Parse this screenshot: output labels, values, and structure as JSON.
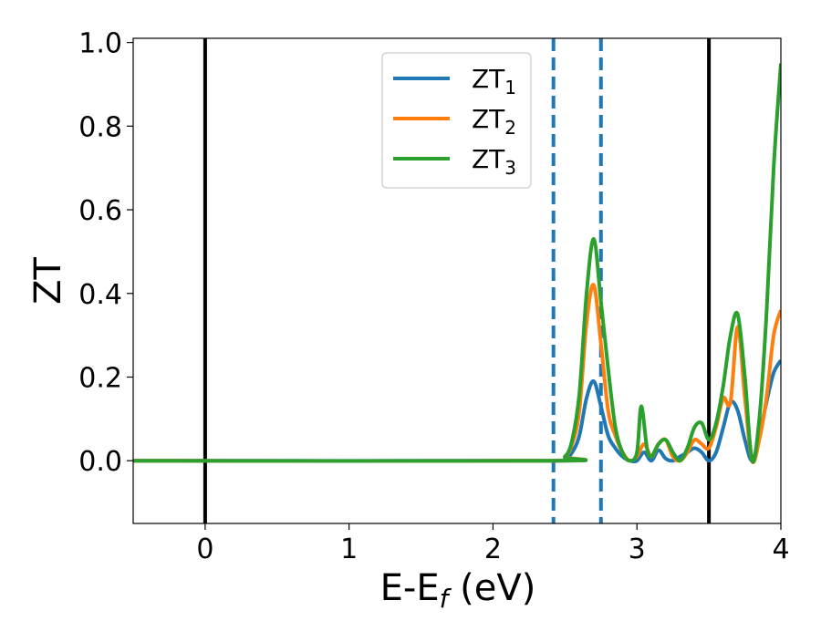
{
  "chart_data": {
    "type": "line",
    "xlabel": "E-E",
    "xlabel_sub": "f",
    "xlabel_unit": " (eV)",
    "ylabel": "ZT",
    "xlim": [
      -0.5,
      4.0
    ],
    "ylim": [
      -0.15,
      1.01
    ],
    "xticks": [
      0,
      1,
      2,
      3,
      4
    ],
    "yticks": [
      0.0,
      0.2,
      0.4,
      0.6,
      0.8,
      1.0
    ],
    "xtick_labels": [
      "0",
      "1",
      "2",
      "3",
      "4"
    ],
    "ytick_labels": [
      "0.0",
      "0.2",
      "0.4",
      "0.6",
      "0.8",
      "1.0"
    ],
    "grid": false,
    "legend_position": "upper-center",
    "vlines": [
      {
        "x": 0.0,
        "style": "solid",
        "color": "#000000"
      },
      {
        "x": 2.42,
        "style": "dashed",
        "color": "#1f77b4"
      },
      {
        "x": 2.75,
        "style": "dashed",
        "color": "#1f77b4"
      },
      {
        "x": 3.5,
        "style": "solid",
        "color": "#000000"
      }
    ],
    "series": [
      {
        "name": "ZT",
        "sub": "1",
        "color": "#1f77b4",
        "x": [
          -0.5,
          2.4,
          2.5,
          2.55,
          2.6,
          2.65,
          2.7,
          2.75,
          2.8,
          2.85,
          2.9,
          2.95,
          3.0,
          3.05,
          3.1,
          3.15,
          3.2,
          3.25,
          3.3,
          3.35,
          3.4,
          3.45,
          3.5,
          3.55,
          3.6,
          3.65,
          3.7,
          3.75,
          3.8,
          3.85,
          3.9,
          3.95,
          4.0
        ],
        "y": [
          0.0,
          0.0,
          0.005,
          0.02,
          0.06,
          0.15,
          0.19,
          0.13,
          0.06,
          0.03,
          0.01,
          0.0,
          0.0,
          0.02,
          0.0,
          0.025,
          0.005,
          0.0,
          0.01,
          0.02,
          0.03,
          0.02,
          0.0,
          0.02,
          0.08,
          0.14,
          0.12,
          0.05,
          0.0,
          0.06,
          0.14,
          0.21,
          0.24
        ]
      },
      {
        "name": "ZT",
        "sub": "2",
        "color": "#ff7f0e",
        "x": [
          -0.5,
          2.4,
          2.5,
          2.55,
          2.6,
          2.65,
          2.7,
          2.75,
          2.8,
          2.85,
          2.9,
          2.95,
          3.0,
          3.05,
          3.1,
          3.15,
          3.2,
          3.25,
          3.3,
          3.35,
          3.4,
          3.45,
          3.5,
          3.55,
          3.6,
          3.65,
          3.7,
          3.75,
          3.8,
          3.85,
          3.9,
          3.95,
          4.0
        ],
        "y": [
          0.0,
          0.0,
          0.01,
          0.04,
          0.12,
          0.33,
          0.42,
          0.28,
          0.12,
          0.06,
          0.02,
          0.0,
          0.01,
          0.04,
          0.01,
          0.04,
          0.05,
          0.01,
          0.0,
          0.02,
          0.05,
          0.04,
          0.03,
          0.08,
          0.15,
          0.14,
          0.32,
          0.15,
          0.0,
          0.05,
          0.15,
          0.3,
          0.36
        ]
      },
      {
        "name": "ZT",
        "sub": "3",
        "color": "#2ca02c",
        "x": [
          -0.5,
          2.4,
          2.5,
          2.55,
          2.6,
          2.65,
          2.7,
          2.75,
          2.8,
          2.85,
          2.9,
          2.95,
          3.0,
          3.03,
          3.07,
          3.1,
          3.15,
          3.2,
          3.25,
          3.3,
          3.35,
          3.4,
          3.45,
          3.5,
          3.55,
          3.6,
          3.65,
          3.7,
          3.75,
          3.8,
          3.85,
          3.9,
          3.95,
          4.0
        ],
        "y": [
          0.0,
          0.0,
          0.01,
          0.05,
          0.16,
          0.4,
          0.53,
          0.38,
          0.22,
          0.08,
          0.02,
          0.0,
          0.02,
          0.13,
          0.03,
          0.01,
          0.04,
          0.05,
          0.02,
          0.0,
          0.03,
          0.08,
          0.09,
          0.05,
          0.09,
          0.18,
          0.3,
          0.35,
          0.2,
          0.0,
          0.1,
          0.35,
          0.7,
          0.95
        ]
      }
    ]
  }
}
